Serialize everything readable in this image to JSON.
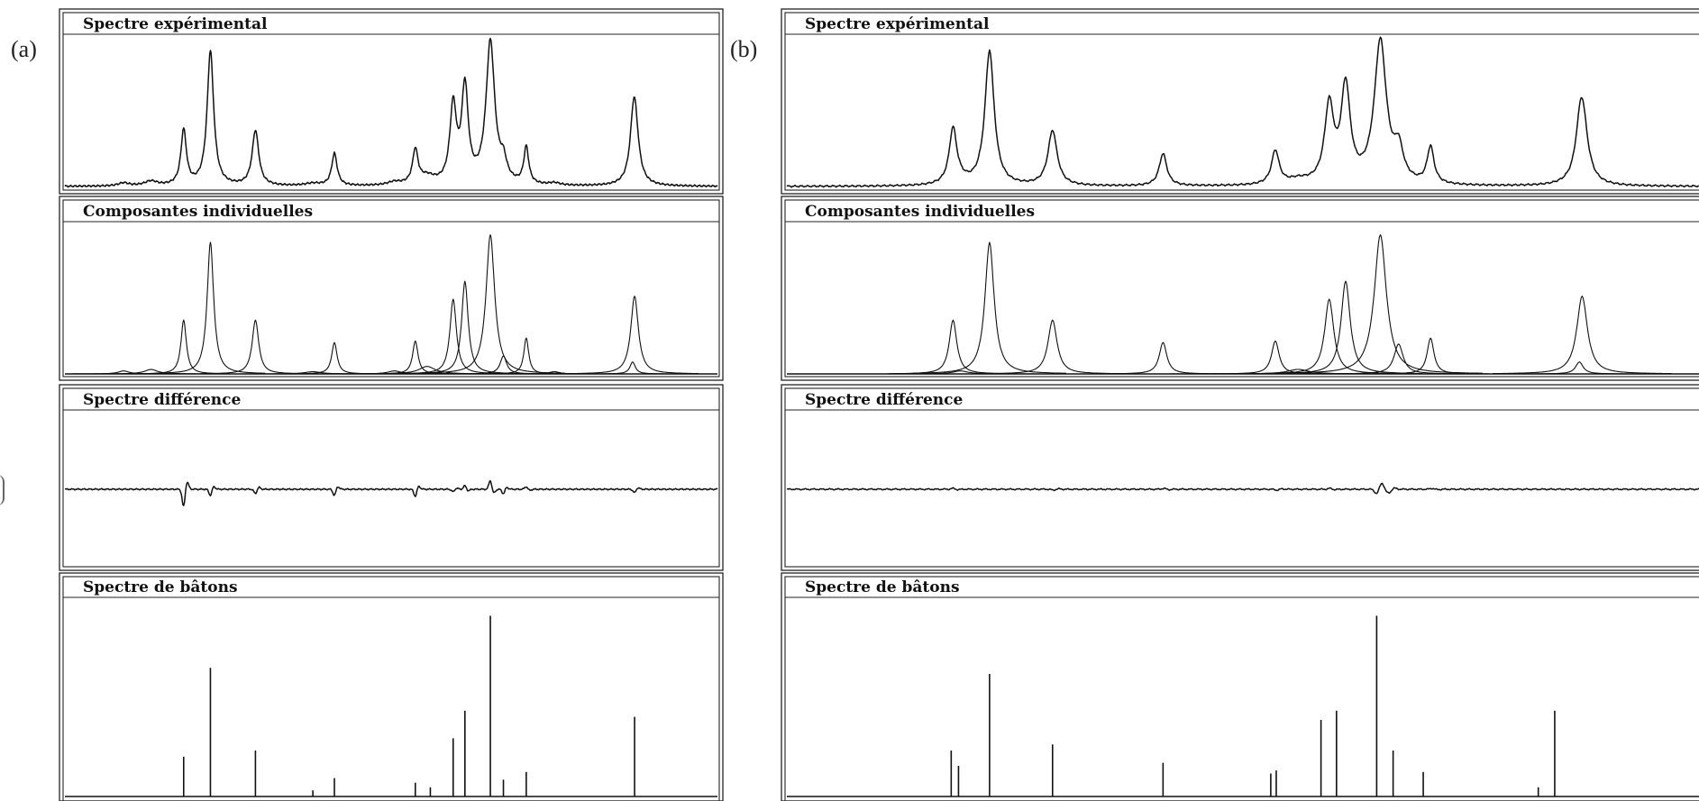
{
  "figure": {
    "labels": [
      "(a)",
      "(b)"
    ],
    "panel_titles": {
      "experimental": "Spectre expérimental",
      "components": "Composantes individuelles",
      "difference": "Spectre différence",
      "sticks": "Spectre de bâtons"
    }
  },
  "chart_data": [
    {
      "id": "a",
      "type": "line",
      "label": "(a)",
      "xlim": [
        0,
        1000
      ],
      "ylim": [
        0,
        100
      ],
      "peaks": [
        {
          "x": 182,
          "h": 36,
          "w": 5.0
        },
        {
          "x": 223,
          "h": 88,
          "w": 6.0
        },
        {
          "x": 292,
          "h": 36,
          "w": 6.0
        },
        {
          "x": 413,
          "h": 21,
          "w": 5.0
        },
        {
          "x": 537,
          "h": 22,
          "w": 5.0
        },
        {
          "x": 595,
          "h": 50,
          "w": 6.0
        },
        {
          "x": 613,
          "h": 62,
          "w": 6.0
        },
        {
          "x": 652,
          "h": 93,
          "w": 8.0
        },
        {
          "x": 672,
          "h": 12,
          "w": 6.0
        },
        {
          "x": 707,
          "h": 24,
          "w": 4.5
        },
        {
          "x": 870,
          "h": 8,
          "w": 5.0
        },
        {
          "x": 873,
          "h": 52,
          "w": 7.0
        }
      ],
      "minor_components": [
        {
          "x": 90,
          "h": 2,
          "w": 10
        },
        {
          "x": 132,
          "h": 3,
          "w": 12
        },
        {
          "x": 380,
          "h": 1.5,
          "w": 15
        },
        {
          "x": 505,
          "h": 2,
          "w": 12
        },
        {
          "x": 555,
          "h": 5,
          "w": 15
        },
        {
          "x": 750,
          "h": 1.5,
          "w": 10
        }
      ],
      "difference_features": [
        {
          "x": 182,
          "a": -20
        },
        {
          "x": 223,
          "a": -7
        },
        {
          "x": 292,
          "a": -5
        },
        {
          "x": 413,
          "a": -7
        },
        {
          "x": 537,
          "a": -8
        },
        {
          "x": 595,
          "a": -3
        },
        {
          "x": 613,
          "a": 4
        },
        {
          "x": 652,
          "a": 10
        },
        {
          "x": 672,
          "a": -5
        },
        {
          "x": 707,
          "a": 3
        },
        {
          "x": 873,
          "a": -4
        }
      ],
      "sticks": [
        {
          "x": 182,
          "h": 26
        },
        {
          "x": 223,
          "h": 84
        },
        {
          "x": 292,
          "h": 30
        },
        {
          "x": 380,
          "h": 4
        },
        {
          "x": 413,
          "h": 12
        },
        {
          "x": 537,
          "h": 9
        },
        {
          "x": 560,
          "h": 6
        },
        {
          "x": 595,
          "h": 38
        },
        {
          "x": 613,
          "h": 56
        },
        {
          "x": 652,
          "h": 118
        },
        {
          "x": 672,
          "h": 11
        },
        {
          "x": 707,
          "h": 16
        },
        {
          "x": 873,
          "h": 52
        }
      ]
    },
    {
      "id": "b",
      "type": "line",
      "label": "(b)",
      "xlim": [
        0,
        1000
      ],
      "ylim": [
        0,
        100
      ],
      "peaks": [
        {
          "x": 182,
          "h": 36,
          "w": 5.0
        },
        {
          "x": 222,
          "h": 88,
          "w": 6.0
        },
        {
          "x": 291,
          "h": 36,
          "w": 6.0
        },
        {
          "x": 412,
          "h": 21,
          "w": 5.0
        },
        {
          "x": 535,
          "h": 22,
          "w": 5.0
        },
        {
          "x": 594,
          "h": 50,
          "w": 6.0
        },
        {
          "x": 612,
          "h": 62,
          "w": 6.0
        },
        {
          "x": 650,
          "h": 93,
          "w": 8.0
        },
        {
          "x": 670,
          "h": 20,
          "w": 6.0
        },
        {
          "x": 705,
          "h": 24,
          "w": 4.5
        },
        {
          "x": 868,
          "h": 8,
          "w": 5.0
        },
        {
          "x": 871,
          "h": 52,
          "w": 7.0
        }
      ],
      "minor_components": [
        {
          "x": 190,
          "h": 2,
          "w": 10
        },
        {
          "x": 560,
          "h": 3,
          "w": 14
        }
      ],
      "difference_features": [
        {
          "x": 182,
          "a": 1
        },
        {
          "x": 292,
          "a": -1
        },
        {
          "x": 413,
          "a": 1
        },
        {
          "x": 537,
          "a": -1
        },
        {
          "x": 595,
          "a": 1
        },
        {
          "x": 646,
          "a": -5
        },
        {
          "x": 652,
          "a": 5
        },
        {
          "x": 660,
          "a": -3
        },
        {
          "x": 707,
          "a": 1
        }
      ],
      "sticks": [
        {
          "x": 180,
          "h": 30
        },
        {
          "x": 188,
          "h": 20
        },
        {
          "x": 222,
          "h": 80
        },
        {
          "x": 291,
          "h": 34
        },
        {
          "x": 412,
          "h": 22
        },
        {
          "x": 530,
          "h": 15
        },
        {
          "x": 536,
          "h": 17
        },
        {
          "x": 585,
          "h": 50
        },
        {
          "x": 602,
          "h": 56
        },
        {
          "x": 646,
          "h": 118
        },
        {
          "x": 664,
          "h": 30
        },
        {
          "x": 697,
          "h": 16
        },
        {
          "x": 823,
          "h": 6
        },
        {
          "x": 841,
          "h": 56
        }
      ]
    }
  ]
}
